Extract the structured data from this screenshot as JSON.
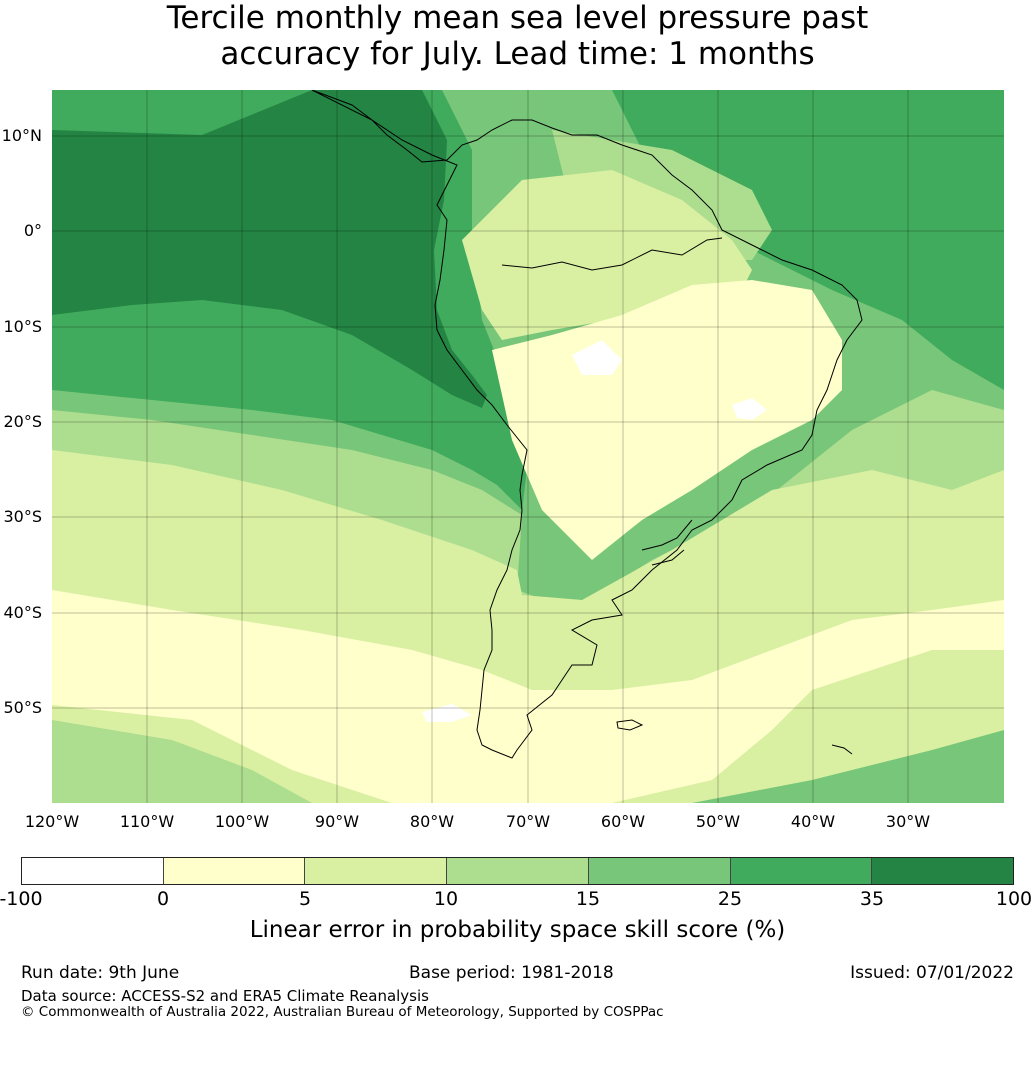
{
  "title_line1": "Tercile monthly mean sea level pressure past",
  "title_line2": "accuracy for July. Lead time: 1 months",
  "lat_labels": [
    "10°N",
    "0°",
    "10°S",
    "20°S",
    "30°S",
    "40°S",
    "50°S"
  ],
  "lon_labels": [
    "120°W",
    "110°W",
    "100°W",
    "90°W",
    "80°W",
    "70°W",
    "60°W",
    "50°W",
    "40°W",
    "30°W"
  ],
  "colorbar": {
    "ticks": [
      "-100",
      "0",
      "5",
      "10",
      "15",
      "25",
      "35",
      "100"
    ],
    "colors": [
      "#ffffff",
      "#ffffcc",
      "#d9f0a3",
      "#addd8e",
      "#78c679",
      "#41ab5d",
      "#238443"
    ],
    "label": "Linear error in probability space skill score (%)"
  },
  "footer": {
    "run_date": "Run date: 9th June",
    "base_period": "Base period: 1981-2018",
    "issued": "Issued: 07/01/2022",
    "data_source": "Data source: ACCESS-S2 and ERA5 Climate Reanalysis",
    "copyright": "© Commonwealth of Australia 2022, Australian Bureau of Meteorology, Supported by COSPPac"
  }
}
